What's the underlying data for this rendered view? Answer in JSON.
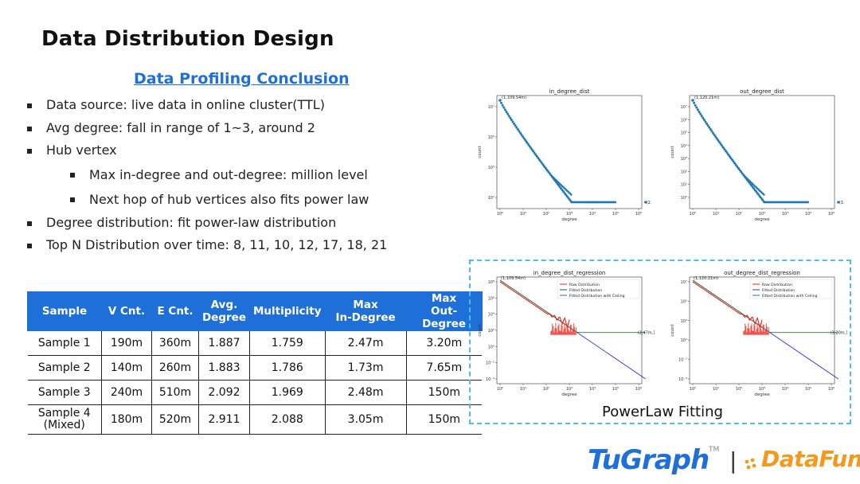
{
  "slide": {
    "title": "Data Distribution Design",
    "subtitle": "Data Profiling Conclusion",
    "bullets": [
      "Data source: live data in online cluster(TTL)",
      "Avg degree: fall in range of 1~3, around 2",
      "Hub vertex",
      "Max in-degree and out-degree: million level",
      "Next hop of hub vertices also fits power law",
      "Degree distribution: fit power-law distribution",
      "Top N Distribution over time: 8, 11, 10, 12, 17, 18, 21"
    ],
    "powerlaw_caption": "PowerLaw Fitting"
  },
  "table": {
    "headers": [
      "Sample",
      "V Cnt.",
      "E Cnt.",
      "Avg.\nDegree",
      "Multiplicity",
      "Max\nIn-Degree",
      "Max\nOut-Degree"
    ],
    "rows": [
      [
        "Sample 1",
        "190m",
        "360m",
        "1.887",
        "1.759",
        "2.47m",
        "3.20m"
      ],
      [
        "Sample 2",
        "140m",
        "260m",
        "1.883",
        "1.786",
        "1.73m",
        "7.65m"
      ],
      [
        "Sample 3",
        "240m",
        "510m",
        "2.092",
        "1.969",
        "2.48m",
        "150m"
      ],
      [
        "Sample 4\n(Mixed)",
        "180m",
        "520m",
        "2.911",
        "2.088",
        "3.05m",
        "150m"
      ]
    ],
    "header_color": "#1f6fd8"
  },
  "chart_data": [
    {
      "type": "scatter",
      "title": "in_degree_dist",
      "xlabel": "degree",
      "ylabel": "count",
      "xscale": "log",
      "yscale": "log",
      "xlim_exp": [
        0,
        6
      ],
      "ylim_exp": [
        0,
        8
      ],
      "x_ticks": [
        "10⁰",
        "10¹",
        "10²",
        "10³",
        "10⁴",
        "10⁵",
        "10⁶"
      ],
      "y_ticks": [
        "10¹",
        "10³",
        "10⁵",
        "10⁷"
      ],
      "annotations": [
        "(1,109.54m)",
        "(2.47m,1)"
      ],
      "head_point": [
        1,
        109540000
      ],
      "tail_point": [
        2470000,
        1
      ],
      "color": "#1f77b4"
    },
    {
      "type": "scatter",
      "title": "out_degree_dist",
      "xlabel": "degree",
      "ylabel": "count",
      "xscale": "log",
      "yscale": "log",
      "xlim_exp": [
        0,
        6
      ],
      "ylim_exp": [
        0,
        8
      ],
      "x_ticks": [
        "10⁰",
        "10¹",
        "10²",
        "10³",
        "10⁴",
        "10⁵",
        "10⁶"
      ],
      "y_ticks": [
        "10⁰",
        "10¹",
        "10²",
        "10³",
        "10⁴",
        "10⁵",
        "10⁶",
        "10⁷"
      ],
      "annotations": [
        "(1,120.21m)",
        "(3.20m,1)"
      ],
      "head_point": [
        1,
        120210000
      ],
      "tail_point": [
        3200000,
        1
      ],
      "color": "#1f77b4"
    },
    {
      "type": "line",
      "title": "in_degree_dist_regression",
      "xlabel": "degree",
      "ylabel": "count",
      "xscale": "log",
      "yscale": "log",
      "x_ticks": [
        "10⁰",
        "10¹",
        "10²",
        "10³",
        "10⁴",
        "10⁵",
        "10⁶"
      ],
      "y_ticks": [
        "10⁸",
        "10⁶",
        "10⁴",
        "10²",
        "10⁰",
        "10⁻²",
        "10⁻⁴"
      ],
      "series": [
        {
          "name": "Raw Distribution",
          "color": "#e8231a"
        },
        {
          "name": "Fitted Distribution",
          "color": "#2a2ff0"
        },
        {
          "name": "Fitted Distribution with Ceiling",
          "color": "#2e7d32"
        }
      ],
      "legend": "top-right",
      "annotations": [
        "(1,109.54m)",
        "(2.47m,1)"
      ]
    },
    {
      "type": "line",
      "title": "out_degree_dist_regression",
      "xlabel": "degree",
      "ylabel": "count",
      "xscale": "log",
      "yscale": "log",
      "x_ticks": [
        "10⁰",
        "10¹",
        "10²",
        "10³",
        "10⁴",
        "10⁵",
        "10⁶"
      ],
      "y_ticks": [
        "10⁷",
        "10⁵",
        "10³",
        "10¹",
        "10⁻¹",
        "10⁻³"
      ],
      "series": [
        {
          "name": "Raw Distribution",
          "color": "#e8231a"
        },
        {
          "name": "Fitted Distribution",
          "color": "#2a2ff0"
        },
        {
          "name": "Fitted Distribution with Ceiling",
          "color": "#2e7d32"
        }
      ],
      "legend": "top-right",
      "annotations": [
        "(1,120.21m)",
        "(3.20m,1)"
      ]
    }
  ],
  "logo": {
    "brand1": "TuGraph",
    "trademark": "TM",
    "separator": "|",
    "brand2": "DataFun.",
    "brand1_color": "#1f6fd8",
    "brand2_color": "#f39a1e"
  }
}
